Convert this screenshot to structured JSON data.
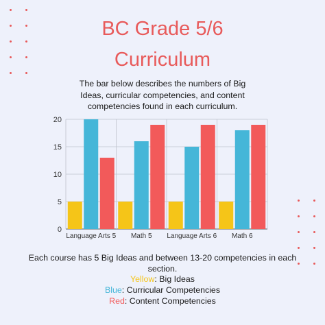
{
  "header": {
    "title_line1": "BC Grade 5/6",
    "title_line2": "Curriculum"
  },
  "description": "The bar below describes the numbers of Big Ideas, curricular competencies, and content competencies found in each curriculum.",
  "footer": {
    "text": "Each course has 5 Big Ideas and between 13-20 competencies in each section."
  },
  "legend": [
    {
      "color_word": "Yellow",
      "sep": ": ",
      "meaning": "Big Ideas",
      "color": "#f5c518"
    },
    {
      "color_word": "Blue",
      "sep": ": ",
      "meaning": "Curricular Competencies",
      "color": "#45b6d8"
    },
    {
      "color_word": "Red",
      "sep": ": ",
      "meaning": "Content Competencies",
      "color": "#f25a5a"
    }
  ],
  "colors": {
    "accent": "#e85a5a",
    "background": "#eef1fb"
  },
  "chart_data": {
    "type": "bar",
    "categories": [
      "Language Arts 5",
      "Math 5",
      "Language Arts 6",
      "Math 6"
    ],
    "series": [
      {
        "values": [
          5,
          5,
          5,
          5
        ],
        "color": "#f5c518"
      },
      {
        "values": [
          20,
          16,
          15,
          18
        ],
        "color": "#45b6d8"
      },
      {
        "values": [
          13,
          19,
          19,
          19
        ],
        "color": "#f25a5a"
      }
    ],
    "yticks": [
      0,
      5,
      10,
      15,
      20
    ],
    "ylim": [
      0,
      20
    ],
    "grid": true
  }
}
